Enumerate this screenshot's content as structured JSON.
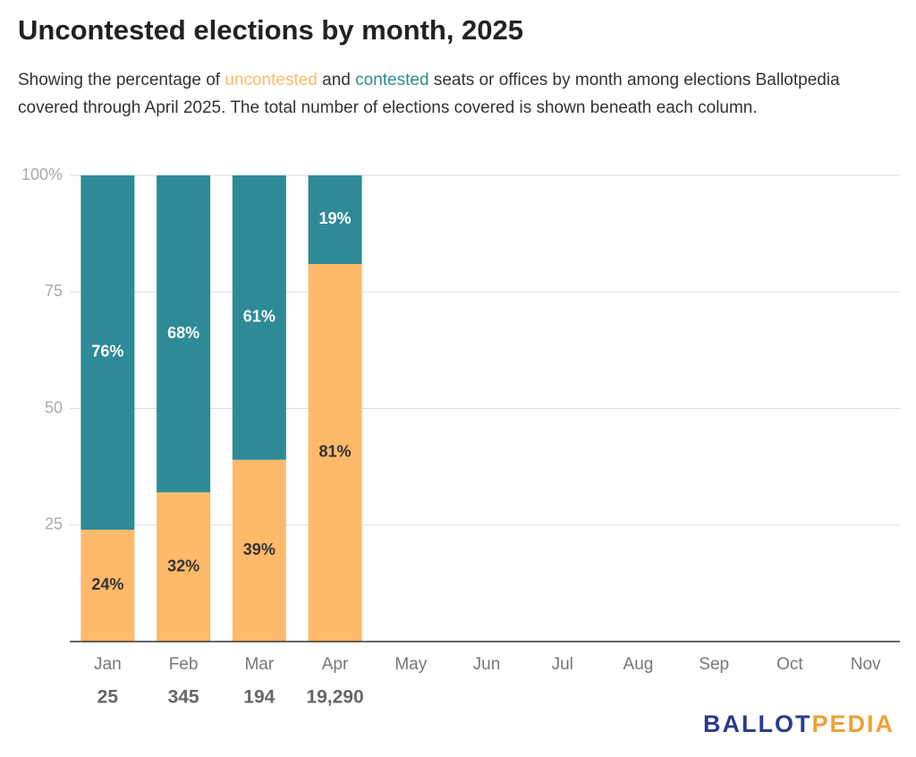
{
  "chart_data": {
    "type": "stacked-bar",
    "title": "Uncontested elections by month, 2025",
    "subtitle": [
      "Showing the percentage of",
      "and",
      "seats or offices by month among elections Ballotpedia covered through April 2025. The total number of elections covered is shown beneath each column."
    ],
    "categories": [
      "Jan",
      "Feb",
      "Mar",
      "Apr",
      "May",
      "Jun",
      "Jul",
      "Aug",
      "Sep",
      "Oct",
      "Nov"
    ],
    "category_totals": [
      "25",
      "345",
      "194",
      "19,290",
      null,
      null,
      null,
      null,
      null,
      null,
      null
    ],
    "series": [
      {
        "name": "uncontested",
        "color": "#ffb96a",
        "label_color": "#333333",
        "values": [
          24,
          32,
          39,
          81,
          null,
          null,
          null,
          null,
          null,
          null,
          null
        ],
        "value_labels": [
          "24%",
          "32%",
          "39%",
          "81%",
          null,
          null,
          null,
          null,
          null,
          null,
          null
        ]
      },
      {
        "name": "contested",
        "color": "#2e8a96",
        "label_color": "#ffffff",
        "values": [
          76,
          68,
          61,
          19,
          null,
          null,
          null,
          null,
          null,
          null,
          null
        ],
        "value_labels": [
          "76%",
          "68%",
          "61%",
          "19%",
          null,
          null,
          null,
          null,
          null,
          null,
          null
        ]
      }
    ],
    "ylim": [
      0,
      100
    ],
    "yticks": [
      25,
      50,
      75,
      {
        "value": 100,
        "label": "100%"
      }
    ],
    "grid": true,
    "logo": [
      "BALLOT",
      "PEDIA"
    ]
  }
}
